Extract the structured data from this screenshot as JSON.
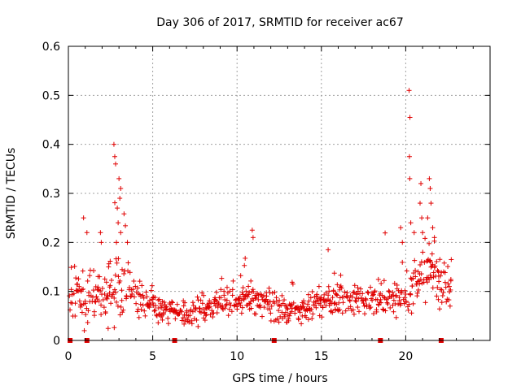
{
  "chart_data": {
    "type": "scatter",
    "title": "Day 306 of 2017, SRMTID for receiver ac67",
    "xlabel": "GPS time / hours",
    "ylabel": "SRMTID / TECUs",
    "xlim": [
      0,
      25
    ],
    "ylim": [
      0,
      0.6
    ],
    "xticks": [
      0,
      5,
      10,
      15,
      20
    ],
    "xtick_labels": [
      "0",
      "5",
      "10",
      "15",
      "20"
    ],
    "yticks": [
      0,
      0.1,
      0.2,
      0.3,
      0.4,
      0.5,
      0.6
    ],
    "ytick_labels": [
      "0",
      "0.1",
      "0.2",
      "0.3",
      "0.4",
      "0.5",
      "0.6"
    ],
    "grid": true,
    "marker": "+",
    "color": "#e00000",
    "baseline_markers_x": [
      0.1,
      1.1,
      6.3,
      12.2,
      18.5,
      22.1
    ],
    "envelope": [
      {
        "x": 0.0,
        "base": 0.08,
        "spread": 0.04
      },
      {
        "x": 1.0,
        "base": 0.1,
        "spread": 0.1
      },
      {
        "x": 2.0,
        "base": 0.1,
        "spread": 0.08
      },
      {
        "x": 3.0,
        "base": 0.12,
        "spread": 0.12
      },
      {
        "x": 4.0,
        "base": 0.09,
        "spread": 0.05
      },
      {
        "x": 5.0,
        "base": 0.07,
        "spread": 0.04
      },
      {
        "x": 6.0,
        "base": 0.06,
        "spread": 0.04
      },
      {
        "x": 7.0,
        "base": 0.05,
        "spread": 0.03
      },
      {
        "x": 8.0,
        "base": 0.06,
        "spread": 0.04
      },
      {
        "x": 9.0,
        "base": 0.08,
        "spread": 0.04
      },
      {
        "x": 10.0,
        "base": 0.09,
        "spread": 0.05
      },
      {
        "x": 11.0,
        "base": 0.08,
        "spread": 0.06
      },
      {
        "x": 12.0,
        "base": 0.07,
        "spread": 0.04
      },
      {
        "x": 13.0,
        "base": 0.06,
        "spread": 0.04
      },
      {
        "x": 14.0,
        "base": 0.06,
        "spread": 0.04
      },
      {
        "x": 15.0,
        "base": 0.08,
        "spread": 0.05
      },
      {
        "x": 16.0,
        "base": 0.09,
        "spread": 0.05
      },
      {
        "x": 17.0,
        "base": 0.08,
        "spread": 0.04
      },
      {
        "x": 18.0,
        "base": 0.08,
        "spread": 0.05
      },
      {
        "x": 19.0,
        "base": 0.09,
        "spread": 0.07
      },
      {
        "x": 20.0,
        "base": 0.09,
        "spread": 0.06
      },
      {
        "x": 21.0,
        "base": 0.14,
        "spread": 0.1
      },
      {
        "x": 22.0,
        "base": 0.12,
        "spread": 0.08
      },
      {
        "x": 22.7,
        "base": 0.09,
        "spread": 0.05
      }
    ],
    "highlight_points": [
      {
        "x": 2.7,
        "y": 0.4
      },
      {
        "x": 2.75,
        "y": 0.375
      },
      {
        "x": 2.8,
        "y": 0.36
      },
      {
        "x": 3.0,
        "y": 0.33
      },
      {
        "x": 3.1,
        "y": 0.31
      },
      {
        "x": 3.05,
        "y": 0.29
      },
      {
        "x": 2.9,
        "y": 0.27
      },
      {
        "x": 2.95,
        "y": 0.24
      },
      {
        "x": 3.1,
        "y": 0.22
      },
      {
        "x": 2.85,
        "y": 0.2
      },
      {
        "x": 0.9,
        "y": 0.25
      },
      {
        "x": 1.1,
        "y": 0.22
      },
      {
        "x": 1.9,
        "y": 0.22
      },
      {
        "x": 1.95,
        "y": 0.2
      },
      {
        "x": 3.5,
        "y": 0.2
      },
      {
        "x": 10.9,
        "y": 0.225
      },
      {
        "x": 10.95,
        "y": 0.21
      },
      {
        "x": 15.4,
        "y": 0.185
      },
      {
        "x": 19.7,
        "y": 0.23
      },
      {
        "x": 19.8,
        "y": 0.2
      },
      {
        "x": 20.2,
        "y": 0.51
      },
      {
        "x": 20.25,
        "y": 0.455
      },
      {
        "x": 20.22,
        "y": 0.375
      },
      {
        "x": 20.24,
        "y": 0.33
      },
      {
        "x": 20.3,
        "y": 0.24
      },
      {
        "x": 20.5,
        "y": 0.22
      },
      {
        "x": 20.9,
        "y": 0.32
      },
      {
        "x": 20.85,
        "y": 0.28
      },
      {
        "x": 20.95,
        "y": 0.25
      },
      {
        "x": 21.0,
        "y": 0.22
      },
      {
        "x": 21.4,
        "y": 0.33
      },
      {
        "x": 21.45,
        "y": 0.31
      },
      {
        "x": 21.5,
        "y": 0.28
      },
      {
        "x": 21.3,
        "y": 0.25
      },
      {
        "x": 21.6,
        "y": 0.23
      },
      {
        "x": 21.7,
        "y": 0.21
      },
      {
        "x": 22.7,
        "y": 0.165
      }
    ]
  }
}
